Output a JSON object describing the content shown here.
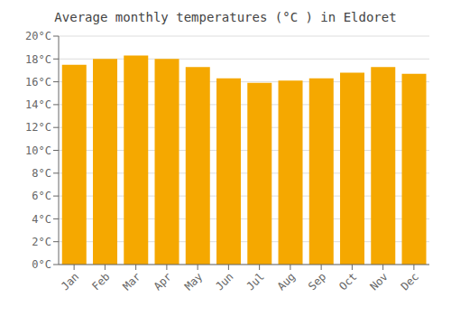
{
  "chart_data": {
    "type": "bar",
    "title": "Average monthly temperatures (°C ) in Eldoret",
    "categories": [
      "Jan",
      "Feb",
      "Mar",
      "Apr",
      "May",
      "Jun",
      "Jul",
      "Aug",
      "Sep",
      "Oct",
      "Nov",
      "Dec"
    ],
    "values": [
      17.5,
      18.0,
      18.3,
      18.0,
      17.3,
      16.3,
      15.9,
      16.1,
      16.3,
      16.8,
      17.3,
      16.7
    ],
    "color": "#F5A800",
    "ylim": [
      0,
      20
    ],
    "yticks": [
      {
        "value": 0,
        "label": "0°C"
      },
      {
        "value": 2,
        "label": "2°C"
      },
      {
        "value": 4,
        "label": "4°C"
      },
      {
        "value": 6,
        "label": "6°C"
      },
      {
        "value": 8,
        "label": "8°C"
      },
      {
        "value": 10,
        "label": "10°C"
      },
      {
        "value": 12,
        "label": "12°C"
      },
      {
        "value": 14,
        "label": "14°C"
      },
      {
        "value": 16,
        "label": "16°C"
      },
      {
        "value": 18,
        "label": "18°C"
      },
      {
        "value": 20,
        "label": "20°C"
      }
    ],
    "grid": true
  }
}
